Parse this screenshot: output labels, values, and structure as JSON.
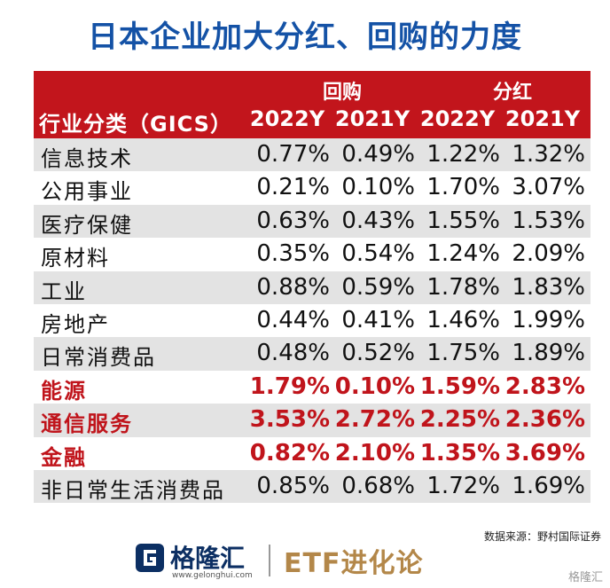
{
  "title": "日本企业加大分红、回购的力度",
  "header": {
    "group1": "回购",
    "group2": "分红",
    "industry_col": "行业分类（GICS）",
    "cols": [
      "2022Y",
      "2021Y",
      "2022Y",
      "2021Y"
    ]
  },
  "rows": [
    {
      "name": "信息技术",
      "v": [
        "0.77%",
        "0.49%",
        "1.22%",
        "1.32%"
      ],
      "highlight": false
    },
    {
      "name": "公用事业",
      "v": [
        "0.21%",
        "0.10%",
        "1.70%",
        "3.07%"
      ],
      "highlight": false
    },
    {
      "name": "医疗保健",
      "v": [
        "0.63%",
        "0.43%",
        "1.55%",
        "1.53%"
      ],
      "highlight": false
    },
    {
      "name": "原材料",
      "v": [
        "0.35%",
        "0.54%",
        "1.24%",
        "2.09%"
      ],
      "highlight": false
    },
    {
      "name": "工业",
      "v": [
        "0.88%",
        "0.59%",
        "1.78%",
        "1.83%"
      ],
      "highlight": false
    },
    {
      "name": "房地产",
      "v": [
        "0.44%",
        "0.41%",
        "1.46%",
        "1.99%"
      ],
      "highlight": false
    },
    {
      "name": "日常消费品",
      "v": [
        "0.48%",
        "0.52%",
        "1.75%",
        "1.89%"
      ],
      "highlight": false
    },
    {
      "name": "能源",
      "v": [
        "1.79%",
        "0.10%",
        "1.59%",
        "2.83%"
      ],
      "highlight": true
    },
    {
      "name": "通信服务",
      "v": [
        "3.53%",
        "2.72%",
        "2.25%",
        "2.36%"
      ],
      "highlight": true
    },
    {
      "name": "金融",
      "v": [
        "0.82%",
        "2.10%",
        "1.35%",
        "3.69%"
      ],
      "highlight": true
    },
    {
      "name": "非日常生活消费品",
      "v": [
        "0.85%",
        "0.68%",
        "1.72%",
        "1.69%"
      ],
      "highlight": false
    }
  ],
  "source": "数据来源：野村国际证券",
  "footer": {
    "logo_text": "格隆汇",
    "logo_url": "www.gelonghui.com",
    "brand": "ETF进化论",
    "watermark": "格隆汇"
  },
  "colors": {
    "title": "#1452a6",
    "header_bg": "#c2151c",
    "highlight_text": "#c0141b"
  }
}
